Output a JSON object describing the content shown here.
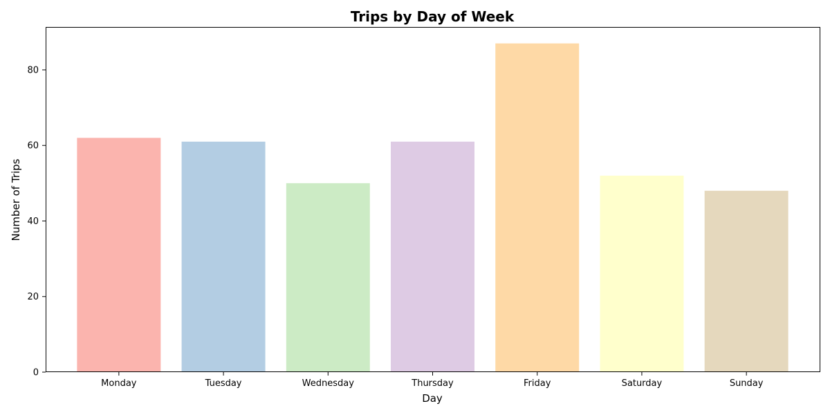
{
  "chart_data": {
    "type": "bar",
    "title": "Trips by Day of Week",
    "xlabel": "Day",
    "ylabel": "Number of Trips",
    "categories": [
      "Monday",
      "Tuesday",
      "Wednesday",
      "Thursday",
      "Friday",
      "Saturday",
      "Sunday"
    ],
    "values": [
      62,
      61,
      50,
      61,
      87,
      52,
      48
    ],
    "colors": [
      "#fbb4ae",
      "#b3cde3",
      "#ccebc5",
      "#decbe4",
      "#fed9a6",
      "#ffffcc",
      "#e5d8bd"
    ],
    "ylim": [
      0,
      91.35
    ],
    "yticks": [
      0,
      20,
      40,
      60,
      80
    ],
    "grid": false,
    "legend": "none"
  }
}
